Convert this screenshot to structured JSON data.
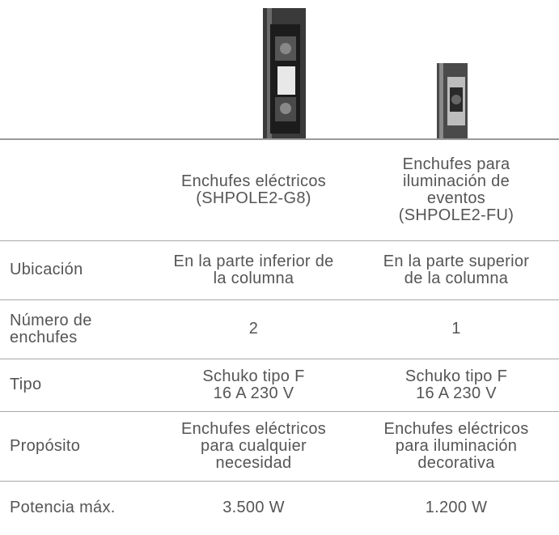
{
  "table": {
    "header": [
      [
        "Enchufes eléctricos",
        "(SHPOLE2-G8)"
      ],
      [
        "Enchufes para",
        "iluminación de",
        "eventos",
        "(SHPOLE2-FU)"
      ]
    ],
    "rows": [
      {
        "label": [
          "Ubicación"
        ],
        "cells": [
          [
            "En la parte inferior de",
            "la columna"
          ],
          [
            "En la parte superior",
            "de la columna"
          ]
        ]
      },
      {
        "label": [
          "Número de",
          "enchufes"
        ],
        "cells": [
          [
            "2"
          ],
          [
            "1"
          ]
        ]
      },
      {
        "label": [
          "Tipo"
        ],
        "cells": [
          [
            "Schuko tipo F",
            "16 A 230 V"
          ],
          [
            "Schuko tipo F",
            "16 A 230 V"
          ]
        ]
      },
      {
        "label": [
          "Propósito"
        ],
        "cells": [
          [
            "Enchufes eléctricos",
            "para cualquier",
            "necesidad"
          ],
          [
            "Enchufes eléctricos",
            "para iluminación",
            "decorativa"
          ]
        ]
      },
      {
        "label": [
          "Potencia máx."
        ],
        "cells": [
          [
            "3.500 W"
          ],
          [
            "1.200 W"
          ]
        ]
      }
    ]
  }
}
